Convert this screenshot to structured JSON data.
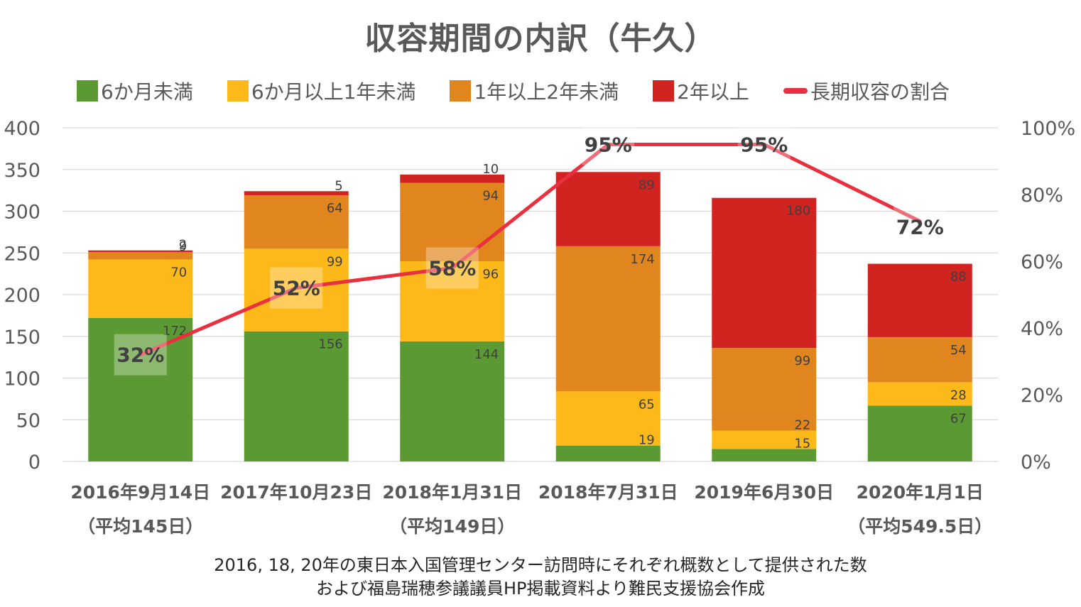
{
  "chart_data": {
    "type": "bar",
    "subtype": "stacked-bar-with-line",
    "title": "収容期間の内訳（牛久）",
    "categories": [
      [
        "2016年9月14日",
        "（平均145日）"
      ],
      [
        "2017年10月23日",
        ""
      ],
      [
        "2018年1月31日",
        "（平均149日）"
      ],
      [
        "2018年7月31日",
        ""
      ],
      [
        "2019年6月30日",
        ""
      ],
      [
        "2020年1月1日",
        "（平均549.5日）"
      ]
    ],
    "series": [
      {
        "name": "6か月未満",
        "color": "#5B9A33",
        "values": [
          172,
          156,
          144,
          19,
          15,
          67
        ]
      },
      {
        "name": "6か月以上1年未満",
        "color": "#FDB91A",
        "values": [
          70,
          99,
          96,
          65,
          22,
          28
        ]
      },
      {
        "name": "1年以上2年未満",
        "color": "#E1861F",
        "values": [
          9,
          64,
          94,
          174,
          99,
          54
        ]
      },
      {
        "name": "2年以上",
        "color": "#D12320",
        "values": [
          2,
          5,
          10,
          89,
          180,
          88
        ]
      }
    ],
    "line_series": {
      "name": "長期収容の割合",
      "color": "#E9303F",
      "axis": "right",
      "values": [
        0.32,
        0.52,
        0.58,
        0.95,
        0.95,
        0.72
      ],
      "labels": [
        "32%",
        "52%",
        "58%",
        "95%",
        "95%",
        "72%"
      ]
    },
    "ylim": [
      0,
      400
    ],
    "yticks": [
      "0",
      "50",
      "100",
      "150",
      "200",
      "250",
      "300",
      "350",
      "400"
    ],
    "y2lim": [
      0,
      1
    ],
    "y2ticks": [
      "0%",
      "20%",
      "40%",
      "60%",
      "80%",
      "100%"
    ],
    "xlabel": "",
    "ylabel": "",
    "grid": true,
    "legend_position": "top"
  },
  "footnote": [
    "2016, 18, 20年の東日本入国管理センター訪問時にそれぞれ概数として提供された数",
    "および福島瑞穂参議議員HP掲載資料より難民支援協会作成"
  ]
}
